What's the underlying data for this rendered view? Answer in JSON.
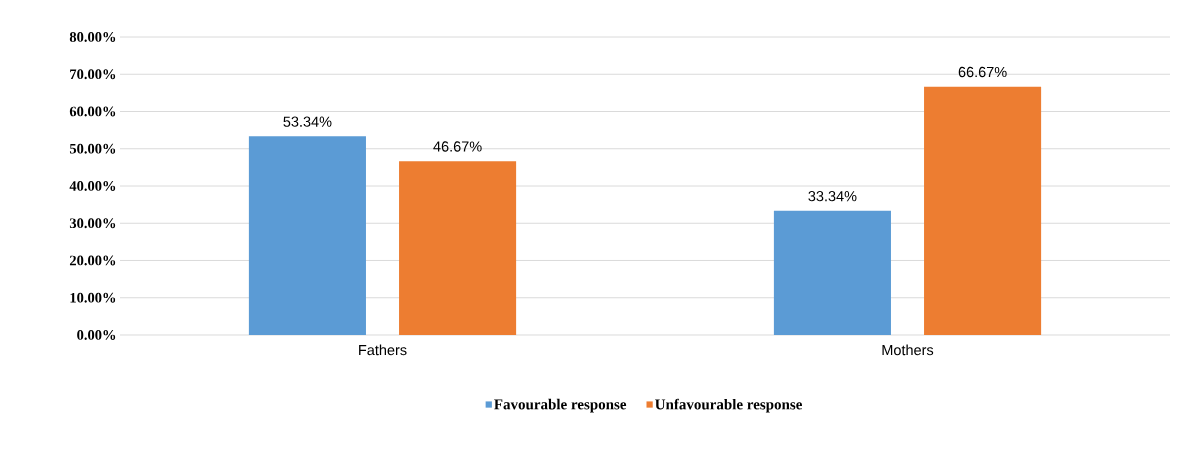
{
  "chart_data": {
    "type": "bar",
    "categories": [
      "Fathers",
      "Mothers"
    ],
    "series": [
      {
        "name": "Favourable response",
        "color": "#5b9bd5",
        "values": [
          53.34,
          33.34
        ],
        "value_labels": [
          "53.34%",
          "33.34%"
        ]
      },
      {
        "name": "Unfavourable response",
        "color": "#ed7d31",
        "values": [
          46.67,
          66.67
        ],
        "value_labels": [
          "46.67%",
          "66.67%"
        ]
      }
    ],
    "ylim": [
      0,
      80
    ],
    "yticks": [
      {
        "value": 0,
        "label": "0.00%"
      },
      {
        "value": 10,
        "label": "10.00%"
      },
      {
        "value": 20,
        "label": "20.00%"
      },
      {
        "value": 30,
        "label": "30.00%"
      },
      {
        "value": 40,
        "label": "40.00%"
      },
      {
        "value": 50,
        "label": "50.00%"
      },
      {
        "value": 60,
        "label": "60.00%"
      },
      {
        "value": 70,
        "label": "70.00%"
      },
      {
        "value": 80,
        "label": "80.00%"
      }
    ],
    "grid": "y",
    "legend": "bottom"
  }
}
